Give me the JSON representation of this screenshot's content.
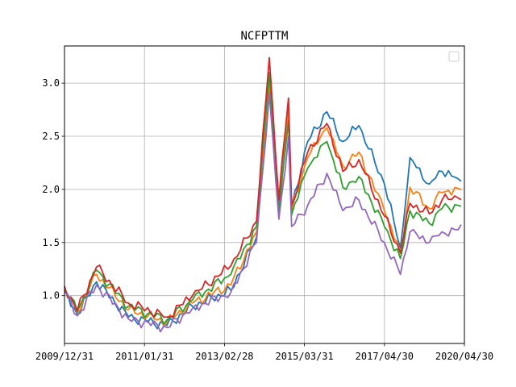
{
  "chart_data": {
    "type": "line",
    "title": "NCFPTTM",
    "xlabel": "",
    "ylabel": "",
    "x_tick_labels": [
      "2009/12/31",
      "2011/01/31",
      "2013/02/28",
      "2015/03/31",
      "2017/04/30",
      "2020/04/30"
    ],
    "x_tick_index": [
      0,
      25,
      50,
      75,
      100,
      125
    ],
    "y_ticks": [
      1.0,
      1.5,
      2.0,
      2.5,
      3.0
    ],
    "y_tick_labels": [
      "1.0",
      "1.5",
      "2.0",
      "2.5",
      "3.0"
    ],
    "xlim": [
      0,
      125
    ],
    "ylim": [
      0.55,
      3.35
    ],
    "grid": true,
    "legend": "top-right (empty)",
    "x_count": 125,
    "anchor_points": [
      {
        "i": 0,
        "v": [
          1.05,
          1.07,
          1.08,
          1.09,
          1.03
        ]
      },
      {
        "i": 4,
        "v": [
          0.82,
          0.84,
          0.85,
          0.86,
          0.81
        ]
      },
      {
        "i": 10,
        "v": [
          1.13,
          1.2,
          1.24,
          1.27,
          1.1
        ]
      },
      {
        "i": 20,
        "v": [
          0.8,
          0.87,
          0.9,
          0.93,
          0.78
        ]
      },
      {
        "i": 32,
        "v": [
          0.72,
          0.75,
          0.77,
          0.8,
          0.7
        ]
      },
      {
        "i": 40,
        "v": [
          0.9,
          0.93,
          0.96,
          1.0,
          0.88
        ]
      },
      {
        "i": 52,
        "v": [
          1.05,
          1.1,
          1.2,
          1.28,
          1.03
        ]
      },
      {
        "i": 60,
        "v": [
          1.55,
          1.6,
          1.65,
          1.7,
          1.5
        ]
      },
      {
        "i": 64,
        "v": [
          2.95,
          3.02,
          3.1,
          3.24,
          2.9
        ]
      },
      {
        "i": 67,
        "v": [
          1.8,
          1.75,
          1.78,
          1.9,
          1.72
        ]
      },
      {
        "i": 70,
        "v": [
          2.8,
          2.75,
          2.65,
          2.86,
          2.5
        ]
      },
      {
        "i": 71,
        "v": [
          1.82,
          1.8,
          1.76,
          1.85,
          1.65
        ]
      },
      {
        "i": 76,
        "v": [
          2.45,
          2.3,
          2.2,
          2.35,
          1.85
        ]
      },
      {
        "i": 82,
        "v": [
          2.73,
          2.58,
          2.45,
          2.62,
          2.15
        ]
      },
      {
        "i": 87,
        "v": [
          2.45,
          2.22,
          2.02,
          2.17,
          1.8
        ]
      },
      {
        "i": 92,
        "v": [
          2.6,
          2.35,
          2.12,
          2.28,
          1.9
        ]
      },
      {
        "i": 100,
        "v": [
          2.05,
          1.8,
          1.65,
          1.75,
          1.5
        ]
      },
      {
        "i": 105,
        "v": [
          1.45,
          1.4,
          1.35,
          1.4,
          1.2
        ]
      },
      {
        "i": 108,
        "v": [
          2.3,
          2.02,
          1.8,
          1.87,
          1.6
        ]
      },
      {
        "i": 114,
        "v": [
          2.05,
          1.82,
          1.68,
          1.77,
          1.5
        ]
      },
      {
        "i": 118,
        "v": [
          2.17,
          1.97,
          1.82,
          1.9,
          1.6
        ]
      },
      {
        "i": 123,
        "v": [
          2.1,
          2.01,
          1.85,
          1.92,
          1.62
        ]
      }
    ],
    "series": [
      {
        "name": "",
        "color": "#1f77b4"
      },
      {
        "name": "",
        "color": "#ff7f0e"
      },
      {
        "name": "",
        "color": "#2ca02c"
      },
      {
        "name": "",
        "color": "#d62728"
      },
      {
        "name": "",
        "color": "#9467bd"
      }
    ]
  }
}
